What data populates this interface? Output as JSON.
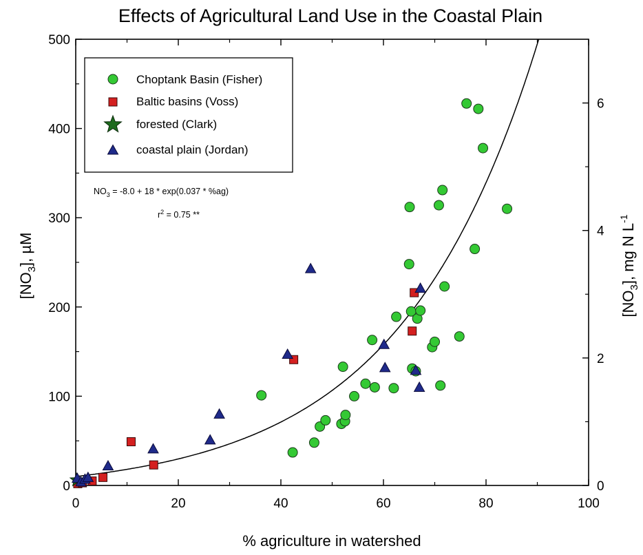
{
  "chart_data": {
    "type": "scatter",
    "title": "Effects of Agricultural Land Use in the Coastal Plain",
    "xlabel": "% agriculture in watershed",
    "ylabel": "[NO3], µM",
    "ylabel_parts": {
      "main": "[NO",
      "sub": "3",
      "end": "], µM"
    },
    "y2label": "[NO3], mg N L-1",
    "y2label_parts": {
      "main": "[NO",
      "sub": "3",
      "mid": "], mg N L",
      "sup": "-1"
    },
    "xlim": [
      0,
      100
    ],
    "ylim": [
      0,
      500
    ],
    "y2lim": [
      0,
      7.0
    ],
    "x_ticks": [
      0,
      20,
      40,
      60,
      80,
      100
    ],
    "y_ticks": [
      0,
      100,
      200,
      300,
      400,
      500
    ],
    "y2_ticks": [
      0,
      2,
      4,
      6
    ],
    "grid": false,
    "legend_position": "top-left",
    "series": [
      {
        "name": "Choptank Basin (Fisher)",
        "marker": "circle",
        "color": "#34c934",
        "points": [
          [
            36.2,
            101
          ],
          [
            42.3,
            37
          ],
          [
            46.5,
            48
          ],
          [
            47.6,
            66
          ],
          [
            48.7,
            73
          ],
          [
            51.8,
            69
          ],
          [
            52.1,
            133
          ],
          [
            52.5,
            72
          ],
          [
            52.6,
            79
          ],
          [
            54.3,
            100
          ],
          [
            56.5,
            114
          ],
          [
            57.8,
            163
          ],
          [
            58.3,
            110
          ],
          [
            62.0,
            109
          ],
          [
            62.5,
            189
          ],
          [
            65.0,
            248
          ],
          [
            65.1,
            312
          ],
          [
            65.4,
            195
          ],
          [
            65.6,
            131
          ],
          [
            66.3,
            128
          ],
          [
            66.6,
            187
          ],
          [
            67.2,
            196
          ],
          [
            69.5,
            155
          ],
          [
            70.0,
            161
          ],
          [
            70.8,
            314
          ],
          [
            71.1,
            112
          ],
          [
            71.5,
            331
          ],
          [
            71.9,
            223
          ],
          [
            74.8,
            167
          ],
          [
            76.2,
            428
          ],
          [
            77.8,
            265
          ],
          [
            78.5,
            422
          ],
          [
            79.4,
            378
          ],
          [
            84.1,
            310
          ]
        ]
      },
      {
        "name": "Baltic basins (Voss)",
        "marker": "square",
        "color": "#d42020",
        "points": [
          [
            0.4,
            2
          ],
          [
            1.3,
            3
          ],
          [
            3.2,
            5
          ],
          [
            5.3,
            9
          ],
          [
            10.8,
            49
          ],
          [
            15.2,
            23
          ],
          [
            42.5,
            141
          ],
          [
            65.6,
            173
          ],
          [
            66.0,
            216
          ]
        ]
      },
      {
        "name": "forested (Clark)",
        "marker": "star",
        "color": "#1e6b1e",
        "points": [
          [
            0.2,
            6
          ]
        ]
      },
      {
        "name": "coastal plain (Jordan)",
        "marker": "triangle",
        "color": "#1f2a8a",
        "points": [
          [
            0.3,
            8
          ],
          [
            1.0,
            4
          ],
          [
            1.8,
            7
          ],
          [
            2.4,
            9
          ],
          [
            6.3,
            22
          ],
          [
            15.1,
            41
          ],
          [
            26.2,
            51
          ],
          [
            28.0,
            80
          ],
          [
            41.3,
            147
          ],
          [
            45.8,
            243
          ],
          [
            60.1,
            158
          ],
          [
            60.3,
            132
          ],
          [
            66.3,
            129
          ],
          [
            67.0,
            110
          ],
          [
            67.2,
            221
          ]
        ]
      }
    ],
    "fit": {
      "equation": "NO3 = -8.0 + 18 * exp(0.037 * %ag)",
      "equation_parts": {
        "a": "NO",
        "sub": "3",
        "b": " = -8.0 + 18 * exp(0.037 * %ag)"
      },
      "r2": "r2 = 0.75 **",
      "r2_parts": {
        "a": "r",
        "sup": "2",
        "b": " = 0.75 **"
      },
      "a": -8.0,
      "b": 18,
      "k": 0.037
    }
  }
}
